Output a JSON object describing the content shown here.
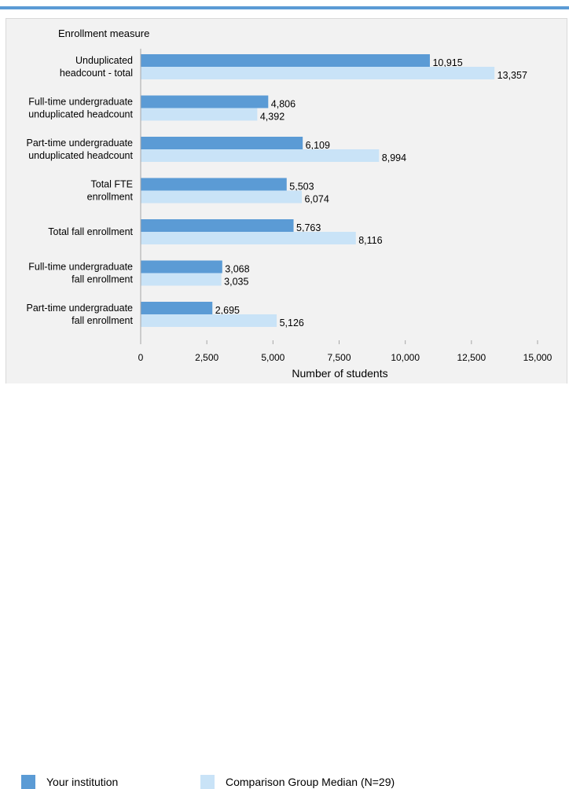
{
  "chart_data": {
    "type": "bar",
    "orientation": "horizontal",
    "title": "Enrollment measure",
    "xlabel": "Number of students",
    "xlim": [
      0,
      15000
    ],
    "xticks": [
      0,
      2500,
      5000,
      7500,
      10000,
      12500,
      15000
    ],
    "xtick_labels": [
      "0",
      "2,500",
      "5,000",
      "7,500",
      "10,000",
      "12,500",
      "15,000"
    ],
    "categories": [
      [
        "Unduplicated",
        "headcount - total"
      ],
      [
        "Full-time undergraduate",
        "unduplicated headcount"
      ],
      [
        "Part-time undergraduate",
        "unduplicated headcount"
      ],
      [
        "Total FTE",
        "enrollment"
      ],
      [
        "Total fall enrollment"
      ],
      [
        "Full-time undergraduate",
        "fall enrollment"
      ],
      [
        "Part-time undergraduate",
        "fall enrollment"
      ]
    ],
    "series": [
      {
        "name": "Your institution",
        "color": "#5b9bd5",
        "values": [
          10915,
          4806,
          6109,
          5503,
          5763,
          3068,
          2695
        ],
        "labels": [
          "10,915",
          "4,806",
          "6,109",
          "5,503",
          "5,763",
          "3,068",
          "2,695"
        ]
      },
      {
        "name": "Comparison Group Median (N=29)",
        "color": "#c9e3f7",
        "values": [
          13357,
          4392,
          8994,
          6074,
          8116,
          3035,
          5126
        ],
        "labels": [
          "13,357",
          "4,392",
          "8,994",
          "6,074",
          "8,116",
          "3,035",
          "5,126"
        ]
      }
    ],
    "grid": false,
    "legend_position": "bottom"
  }
}
